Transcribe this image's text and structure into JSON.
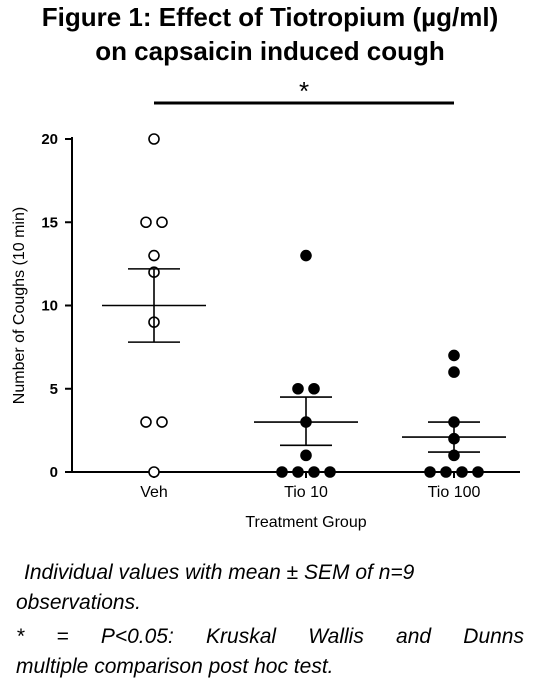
{
  "figure": {
    "title_line1": "Figure 1: Effect of Tiotropium (µg/ml)",
    "title_line2": "on capsaicin induced cough",
    "caption_line1": "Individual values with mean ± SEM of n=9 observations.",
    "caption_line2a": "* = P<0.05: Kruskal Wallis and Dunns",
    "caption_line2b": "multiple comparison post hoc test."
  },
  "chart_data": {
    "type": "scatter",
    "xlabel": "Treatment Group",
    "ylabel": "Number of Coughs (10 min)",
    "ylim": [
      0,
      20
    ],
    "yticks": [
      0,
      5,
      10,
      15,
      20
    ],
    "categories": [
      "Veh",
      "Tio 10",
      "Tio 100"
    ],
    "groups": [
      {
        "name": "Veh",
        "marker": "open-circle",
        "values": [
          20,
          15,
          15,
          13,
          12,
          9,
          3,
          3,
          0
        ],
        "mean": 10.0,
        "sem_low": 7.8,
        "sem_high": 12.2
      },
      {
        "name": "Tio 10",
        "marker": "filled-circle",
        "values": [
          13,
          5,
          5,
          3,
          1,
          0,
          0,
          0,
          0
        ],
        "mean": 3.0,
        "sem_low": 1.6,
        "sem_high": 4.5
      },
      {
        "name": "Tio 100",
        "marker": "filled-circle",
        "values": [
          7,
          6,
          3,
          2,
          1,
          0,
          0,
          0,
          0
        ],
        "mean": 2.1,
        "sem_low": 1.2,
        "sem_high": 3.0
      }
    ],
    "significance": {
      "label": "*",
      "from": "Veh",
      "to": "Tio 100"
    },
    "colors": {
      "marker": "#000000",
      "axis": "#000000",
      "background": "#ffffff"
    }
  }
}
